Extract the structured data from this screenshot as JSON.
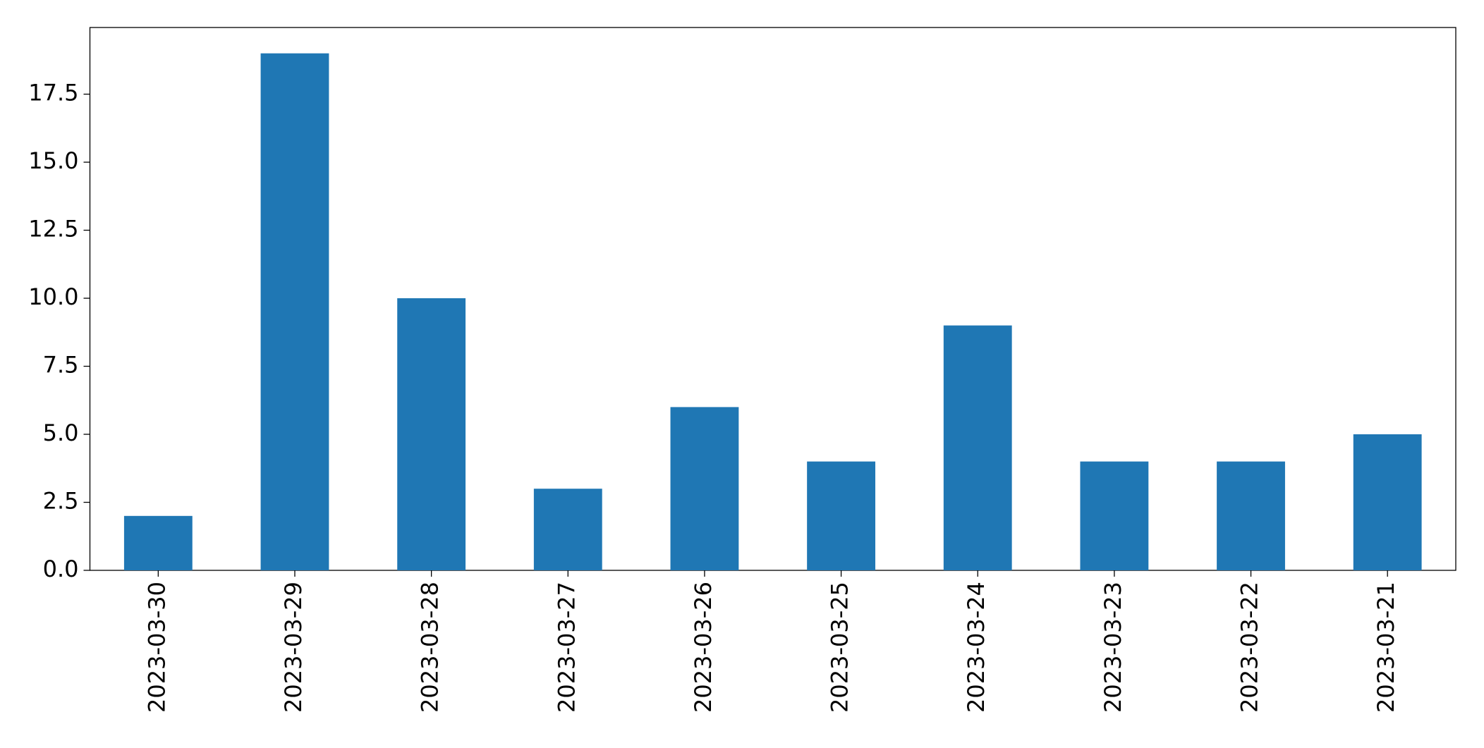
{
  "chart_data": {
    "type": "bar",
    "categories": [
      "2023-03-30",
      "2023-03-29",
      "2023-03-28",
      "2023-03-27",
      "2023-03-26",
      "2023-03-25",
      "2023-03-24",
      "2023-03-23",
      "2023-03-22",
      "2023-03-21"
    ],
    "values": [
      2,
      19,
      10,
      3,
      6,
      4,
      9,
      4,
      4,
      5
    ],
    "color": "#1f77b4",
    "ylim": [
      0,
      19.95
    ],
    "yticks": [
      {
        "value": 0,
        "label": "0.0"
      },
      2.5,
      {
        "value": 5,
        "label": "5.0"
      },
      7.5,
      {
        "value": 10,
        "label": "10.0"
      },
      12.5,
      {
        "value": 15,
        "label": "15.0"
      },
      17.5
    ],
    "grid": false
  }
}
